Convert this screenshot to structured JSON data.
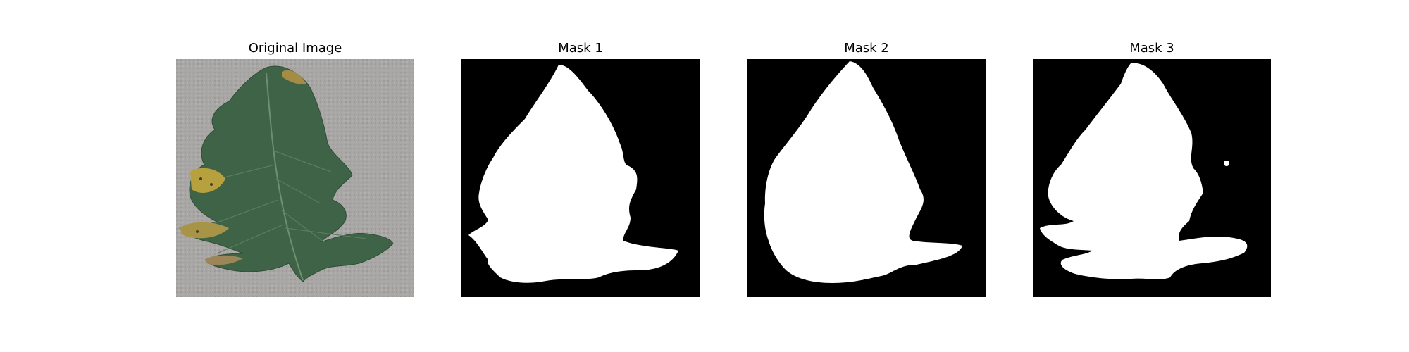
{
  "panels": [
    {
      "title": "Original Image"
    },
    {
      "title": "Mask 1"
    },
    {
      "title": "Mask 2"
    },
    {
      "title": "Mask 3"
    }
  ],
  "colors": {
    "background": "#ffffff",
    "mask_background": "#000000",
    "mask_foreground": "#ffffff",
    "surface_gray": "#a7a5a3",
    "leaf_green": "#3d6145",
    "leaf_disease": "#b7a13f"
  }
}
